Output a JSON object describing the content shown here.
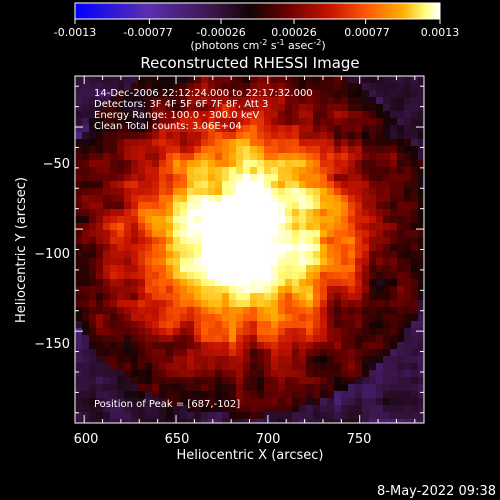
{
  "colorbar": {
    "tick_labels": [
      "-0.0013",
      "-0.00077",
      "-0.00026",
      "0.00026",
      "0.00077",
      "0.0013"
    ],
    "min": -0.0013,
    "max": 0.0013
  },
  "units_label": "(photons cm",
  "units_sup1": "-2",
  "units_mid1": " s",
  "units_sup2": "-1",
  "units_mid2": " asec",
  "units_sup3": "-2",
  "units_end": ")",
  "title": "Reconstructed RHESSI Image",
  "info": {
    "line1": "14-Dec-2006 22:12:24.000 to 22:17:32.000",
    "line2": "Detectors: 3F 4F 5F 6F 7F 8F, Att 3",
    "line3": "Energy Range: 100.0 - 300.0 keV",
    "line4": "Clean     Total counts: 3.06E+04"
  },
  "peak_label": "Position of Peak = [687,-102]",
  "footer_timestamp": "8-May-2022 09:38",
  "chart_data": {
    "type": "heatmap",
    "title": "Reconstructed RHESSI Image",
    "xlabel": "Heliocentric X (arcsec)",
    "ylabel": "Heliocentric Y (arcsec)",
    "xlim": [
      595,
      785
    ],
    "ylim": [
      -195,
      -25
    ],
    "x_ticks": [
      600,
      650,
      700,
      750
    ],
    "y_ticks": [
      -50,
      -100,
      -150
    ],
    "x_tick_labels": [
      "600",
      "650",
      "700",
      "750"
    ],
    "y_tick_labels": [
      "−50",
      "−100",
      "−150"
    ],
    "colorscale": "rainbow",
    "value_range": [
      -0.0013,
      0.0013
    ],
    "peak": [
      687,
      -102
    ],
    "colors": {
      "colorbar_stops": [
        "#0000ff",
        "#5a2fb0",
        "#3a1548",
        "#120303",
        "#6a0000",
        "#c81400",
        "#ff5a00",
        "#ffb000",
        "#ffff80",
        "#ffffff"
      ]
    }
  }
}
